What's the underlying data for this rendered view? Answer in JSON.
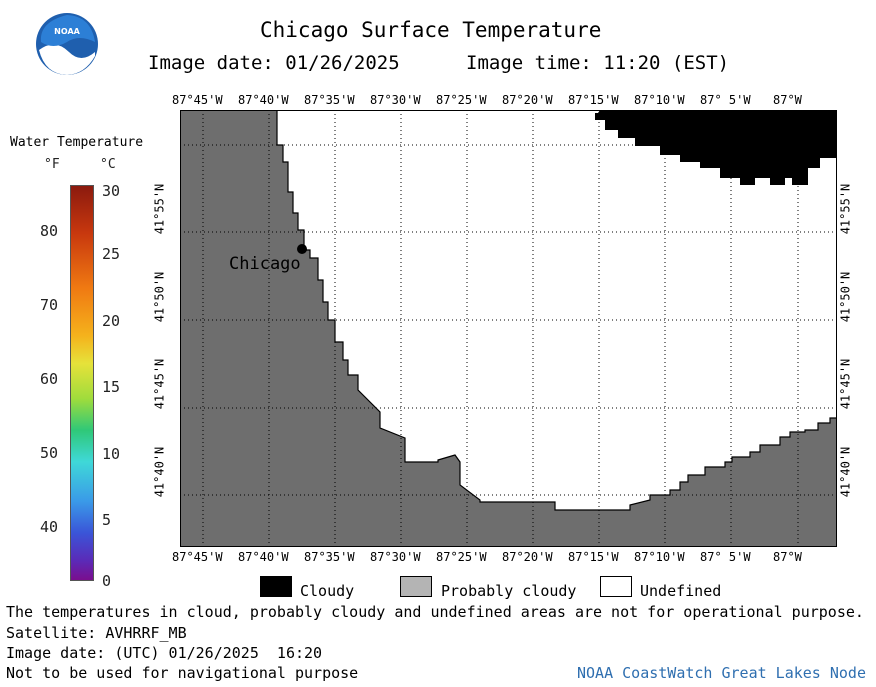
{
  "header": {
    "title": "Chicago Surface Temperature",
    "image_date": "Image date: 01/26/2025",
    "image_time": "Image time: 11:20 (EST)"
  },
  "colorbar": {
    "title": "Water Temperature",
    "unit_f": "°F",
    "unit_c": "°C",
    "f_ticks": [
      "80",
      "70",
      "60",
      "50",
      "40"
    ],
    "c_ticks": [
      "30",
      "25",
      "20",
      "15",
      "10",
      "5",
      "0"
    ]
  },
  "map": {
    "lon_labels": [
      "87°45'W",
      "87°40'W",
      "87°35'W",
      "87°30'W",
      "87°25'W",
      "87°20'W",
      "87°15'W",
      "87°10'W",
      "87° 5'W",
      "87°W"
    ],
    "lat_labels": [
      "41°55'N",
      "41°50'N",
      "41°45'N",
      "41°40'N"
    ],
    "city_label": "Chicago",
    "colors": {
      "land": "#6e6e6e",
      "cloud": "#000000",
      "probably_cloudy": "#b4b4b4",
      "undefined": "#ffffff"
    }
  },
  "legend": {
    "cloudy": "Cloudy",
    "probably_cloudy": "Probably cloudy",
    "undefined": "Undefined"
  },
  "footer": {
    "note": "The temperatures in cloud, probably cloudy and undefined areas are not for operational purpose.",
    "satellite": "Satellite: AVHRRF_MB",
    "utc_date": "Image date: (UTC) 01/26/2025  16:20",
    "nav_note": "Not to be used for navigational purpose",
    "credit": "NOAA CoastWatch Great Lakes Node"
  },
  "logo": {
    "text": "NOAA"
  }
}
